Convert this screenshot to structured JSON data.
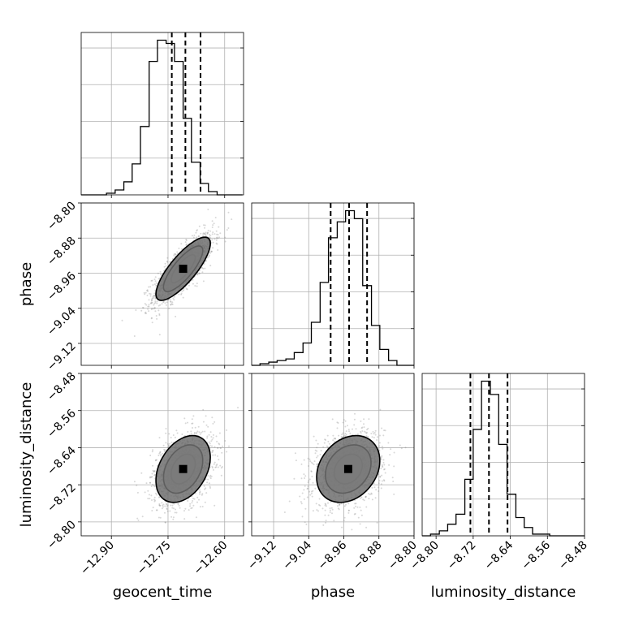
{
  "chart_data": {
    "type": "corner",
    "grid": true,
    "parameters": [
      {
        "name": "geocent_time",
        "range": [
          -12.98,
          -12.55
        ],
        "ticks": [
          -12.9,
          -12.75,
          -12.6
        ],
        "tick_labels": [
          "−12.90",
          "−12.75",
          "−12.60"
        ],
        "quantiles": [
          -12.74,
          -12.704,
          -12.664
        ],
        "hist_bins": [
          -12.98,
          -12.957,
          -12.935,
          -12.913,
          -12.89,
          -12.867,
          -12.845,
          -12.823,
          -12.8,
          -12.778,
          -12.755,
          -12.733,
          -12.71,
          -12.688,
          -12.665,
          -12.643,
          -12.62,
          -12.598,
          -12.575,
          -12.553
        ],
        "hist_counts": [
          0,
          0,
          0,
          1,
          3,
          8,
          19,
          42,
          82,
          95,
          93,
          82,
          47,
          20,
          7,
          2,
          0,
          0,
          0
        ],
        "mean": -12.71,
        "std": 0.04
      },
      {
        "name": "phase",
        "range": [
          -9.17,
          -8.8
        ],
        "ticks": [
          -9.12,
          -9.04,
          -8.96,
          -8.88,
          -8.8
        ],
        "tick_labels": [
          "−9.12",
          "−9.04",
          "−8.96",
          "−8.88",
          "−8.80"
        ],
        "quantiles": [
          -8.99,
          -8.948,
          -8.907
        ],
        "hist_bins": [
          -9.17,
          -9.151,
          -9.131,
          -9.112,
          -9.092,
          -9.073,
          -9.053,
          -9.034,
          -9.014,
          -8.995,
          -8.975,
          -8.956,
          -8.936,
          -8.917,
          -8.897,
          -8.878,
          -8.858,
          -8.839,
          -8.819,
          -8.8
        ],
        "hist_counts": [
          0,
          1,
          2,
          3,
          4,
          8,
          14,
          27,
          52,
          80,
          90,
          97,
          92,
          50,
          25,
          10,
          3,
          0,
          0
        ],
        "mean": -8.95,
        "std": 0.04
      },
      {
        "name": "luminosity_distance",
        "range": [
          -8.83,
          -8.48
        ],
        "ticks": [
          -8.8,
          -8.72,
          -8.64,
          -8.56,
          -8.48
        ],
        "tick_labels": [
          "−8.80",
          "−8.72",
          "−8.64",
          "−8.56",
          "−8.48"
        ],
        "quantiles": [
          -8.726,
          -8.686,
          -8.646
        ],
        "hist_bins": [
          -8.83,
          -8.812,
          -8.793,
          -8.775,
          -8.757,
          -8.738,
          -8.72,
          -8.702,
          -8.683,
          -8.665,
          -8.647,
          -8.628,
          -8.61,
          -8.592,
          -8.573,
          -8.555,
          -8.537,
          -8.518,
          -8.5,
          -8.48
        ],
        "hist_counts": [
          0,
          1,
          3,
          7,
          13,
          34,
          64,
          93,
          85,
          55,
          25,
          11,
          5,
          1,
          1,
          0,
          0,
          0,
          0
        ],
        "mean": -8.686,
        "std": 0.04
      }
    ],
    "pairs": [
      {
        "x": "geocent_time",
        "y": "phase",
        "correlation": 0.8
      },
      {
        "x": "geocent_time",
        "y": "luminosity_distance",
        "correlation": 0.35
      },
      {
        "x": "phase",
        "y": "luminosity_distance",
        "correlation": 0.25
      }
    ],
    "contour_levels": [
      0.5,
      1.0,
      1.5,
      2.0
    ],
    "colors": {
      "line": "#000000",
      "points": "#7f7f7f",
      "grid": "#b0b0b0"
    }
  }
}
